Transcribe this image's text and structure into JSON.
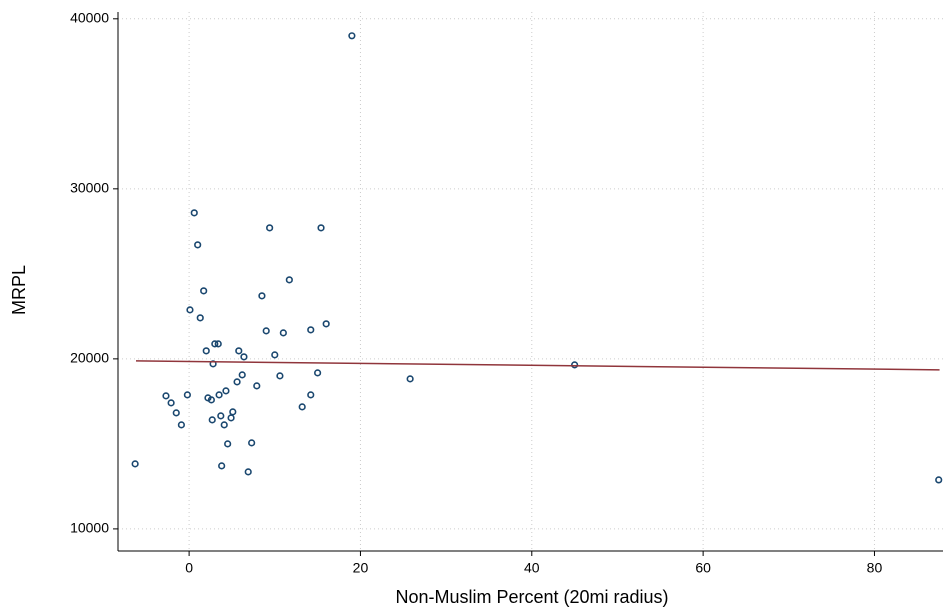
{
  "chart_data": {
    "type": "scatter",
    "x_label": "Non-Muslim Percent (20mi radius)",
    "y_label": "MRPL",
    "xlim": [
      -8.3,
      88
    ],
    "ylim": [
      8700,
      40400
    ],
    "xticks": [
      0,
      20,
      40,
      60,
      80
    ],
    "yticks": [
      10000,
      20000,
      30000,
      40000
    ],
    "grid": true,
    "marker_color": "#1a476f",
    "x": [
      -6.3,
      19.0,
      0.6,
      1.0,
      9.4,
      15.4,
      1.7,
      11.7,
      8.5,
      0.1,
      1.3,
      16.0,
      9.0,
      14.2,
      11.0,
      3.0,
      3.4,
      2.0,
      5.8,
      6.4,
      10.0,
      2.8,
      45.0,
      15.0,
      6.2,
      10.6,
      25.8,
      5.6,
      7.9,
      4.3,
      -0.2,
      3.5,
      -2.7,
      14.2,
      -2.1,
      2.2,
      2.6,
      13.2,
      -1.5,
      5.1,
      3.7,
      4.9,
      2.7,
      -0.9,
      4.1,
      4.5,
      7.3,
      3.8,
      6.9,
      87.5
    ],
    "y": [
      13824,
      39000,
      28588,
      26706,
      27706,
      27706,
      24000,
      24647,
      23706,
      22882,
      22412,
      22059,
      21647,
      21706,
      21529,
      20882,
      20882,
      20471,
      20471,
      20118,
      20235,
      19706,
      19647,
      19176,
      19059,
      19000,
      18824,
      18647,
      18412,
      18118,
      17882,
      17882,
      17824,
      17882,
      17412,
      17706,
      17588,
      17176,
      16824,
      16882,
      16647,
      16529,
      16412,
      16118,
      16118,
      15000,
      15059,
      13706,
      13353,
      12882
    ],
    "fit": {
      "x": [
        -6.2,
        87.6
      ],
      "y": [
        19882,
        19353
      ],
      "color": "#90353b"
    }
  }
}
